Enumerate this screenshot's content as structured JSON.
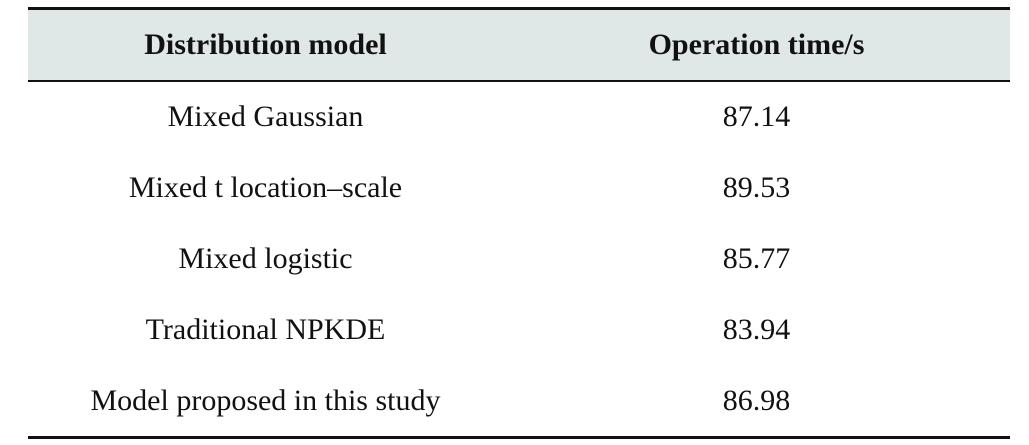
{
  "table": {
    "header": [
      "Distribution model",
      "Operation time/s"
    ],
    "rows": [
      [
        "Mixed Gaussian",
        "87.14"
      ],
      [
        "Mixed t location–scale",
        "89.53"
      ],
      [
        "Mixed logistic",
        "85.77"
      ],
      [
        "Traditional NPKDE",
        "83.94"
      ],
      [
        "Model proposed in this study",
        "86.98"
      ]
    ]
  }
}
